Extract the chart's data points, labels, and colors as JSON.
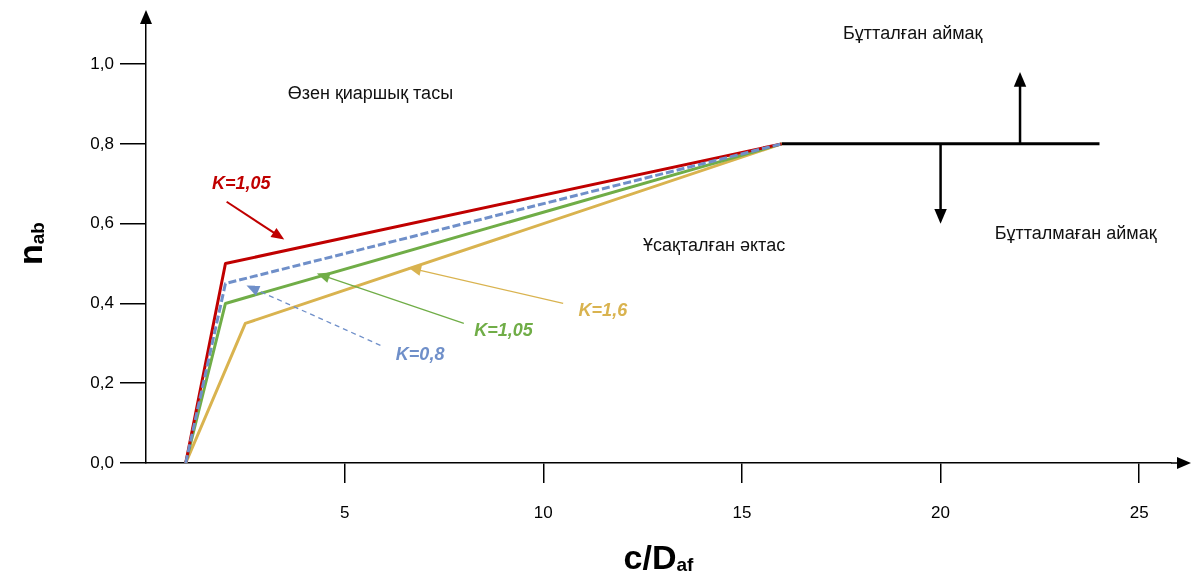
{
  "chart_data": {
    "type": "line",
    "xlabel": "c/D$_{af}$",
    "ylabel": "n$_{ab}$",
    "xlim": [
      0,
      25.8
    ],
    "ylim": [
      0,
      1.1
    ],
    "xticks": [
      5,
      10,
      15,
      20,
      25
    ],
    "yticks": [
      {
        "value": 0,
        "label": "0,0"
      },
      {
        "value": 0.2,
        "label": "0,2"
      },
      {
        "value": 0.4,
        "label": "0,4"
      },
      {
        "value": 0.6,
        "label": "0,6"
      },
      {
        "value": 0.8,
        "label": "0,8"
      },
      {
        "value": 1.0,
        "label": "1,0"
      }
    ],
    "series": [
      {
        "name": "K=1,05",
        "color": "#c00000",
        "x": [
          1,
          2,
          16
        ],
        "values": [
          0,
          0.5,
          0.8
        ]
      },
      {
        "name": "K=0,8",
        "color": "#6f8fc9",
        "line_style": "dashed",
        "x": [
          1,
          2,
          16
        ],
        "values": [
          0,
          0.45,
          0.8
        ]
      },
      {
        "name": "K=1,05",
        "color": "#70ad47",
        "x": [
          1,
          2,
          16
        ],
        "values": [
          0,
          0.4,
          0.8
        ]
      },
      {
        "name": "K=1,6",
        "color": "#d9b34f",
        "x": [
          1,
          2.5,
          16
        ],
        "values": [
          0,
          0.35,
          0.8
        ]
      },
      {
        "color": "#000000",
        "x": [
          16,
          24
        ],
        "values": [
          0.8,
          0.8
        ]
      }
    ],
    "annotations": [
      "Өзен қиаршық тасы",
      "Ұсақталған әктас",
      "Бұтталған аймақ",
      "Бұтталмаған аймақ"
    ],
    "marker": "none",
    "grid": false,
    "legend": false
  }
}
